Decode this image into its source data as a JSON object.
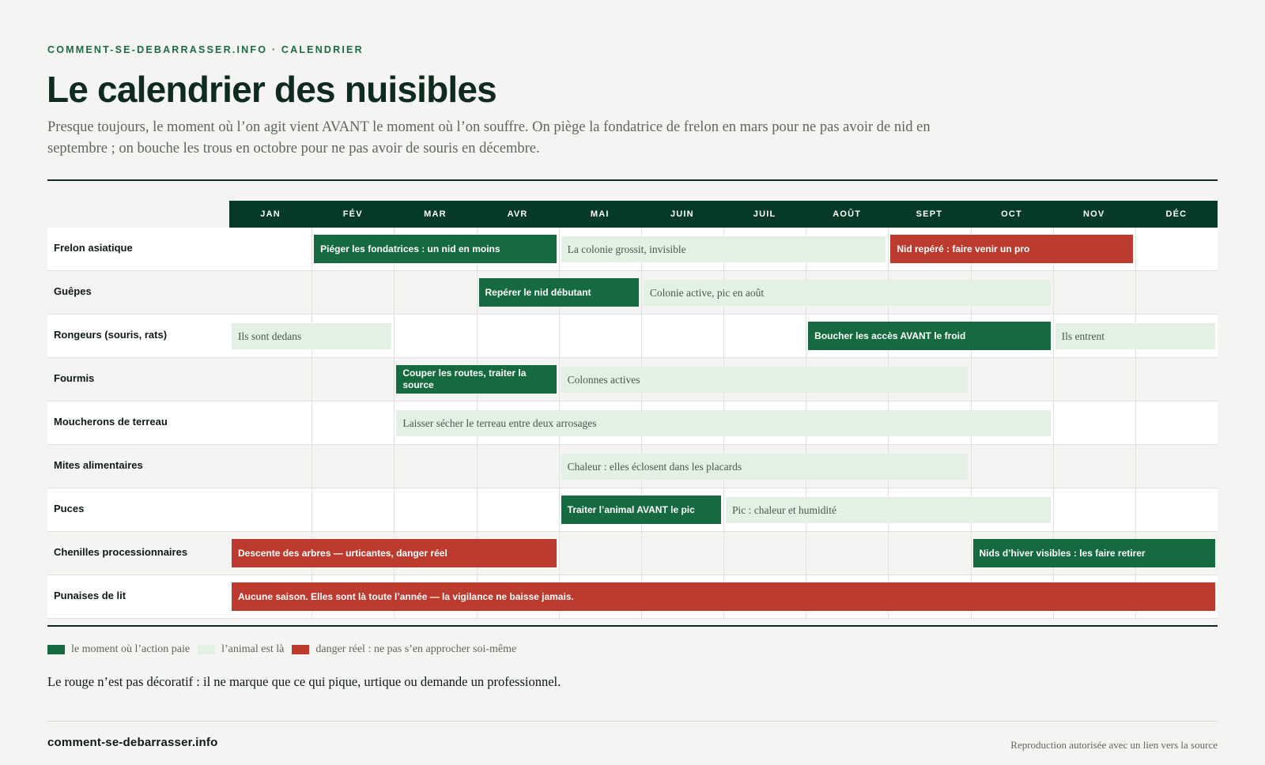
{
  "header": {
    "kicker": "COMMENT-SE-DEBARRASSER.INFO · CALENDRIER",
    "title": "Le calendrier des nuisibles",
    "lede": "Presque toujours, le moment où l’on agit vient AVANT le moment où l’on souffre. On piège la fondatrice de frelon en mars pour ne pas avoir de nid en septembre ; on bouche les trous en octobre pour ne pas avoir de souris en décembre."
  },
  "colors": {
    "action": "#166a40",
    "present": "#e3f0e4",
    "danger": "#bd3a2f",
    "header": "#063a28"
  },
  "months": [
    "JAN",
    "FÉV",
    "MAR",
    "AVR",
    "MAI",
    "JUIN",
    "JUIL",
    "AOÛT",
    "SEPT",
    "OCT",
    "NOV",
    "DÉC"
  ],
  "pests": [
    {
      "name": "Frelon asiatique",
      "bars": [
        {
          "start": 2,
          "end": 4,
          "kind": "action",
          "label": "Piéger les fondatrices : un nid en moins"
        },
        {
          "start": 5,
          "end": 8,
          "kind": "present",
          "label": "La colonie grossit, invisible"
        },
        {
          "start": 9,
          "end": 11,
          "kind": "danger",
          "label": "Nid repéré : faire venir un pro"
        }
      ]
    },
    {
      "name": "Guêpes",
      "bars": [
        {
          "start": 4,
          "end": 5,
          "kind": "action",
          "label": "Repérer le nid débutant"
        },
        {
          "start": 6,
          "end": 10,
          "kind": "present",
          "label": "Colonie active, pic en août"
        }
      ]
    },
    {
      "name": "Rongeurs (souris, rats)",
      "bars": [
        {
          "start": 1,
          "end": 2,
          "kind": "present",
          "label": "Ils sont dedans"
        },
        {
          "start": 8,
          "end": 10,
          "kind": "action",
          "label": "Boucher les accès AVANT le froid"
        },
        {
          "start": 11,
          "end": 12,
          "kind": "present",
          "label": "Ils entrent"
        }
      ]
    },
    {
      "name": "Fourmis",
      "bars": [
        {
          "start": 3,
          "end": 4,
          "kind": "action",
          "label": "Couper les routes, traiter la source"
        },
        {
          "start": 5,
          "end": 9,
          "kind": "present",
          "label": "Colonnes actives"
        }
      ]
    },
    {
      "name": "Moucherons de terreau",
      "bars": [
        {
          "start": 3,
          "end": 10,
          "kind": "present",
          "label": "Laisser sécher le terreau entre deux arrosages"
        }
      ]
    },
    {
      "name": "Mites alimentaires",
      "bars": [
        {
          "start": 5,
          "end": 9,
          "kind": "present",
          "label": "Chaleur : elles éclosent dans les placards"
        }
      ]
    },
    {
      "name": "Puces",
      "bars": [
        {
          "start": 5,
          "end": 6,
          "kind": "action",
          "label": "Traiter l’animal AVANT le pic"
        },
        {
          "start": 7,
          "end": 10,
          "kind": "present",
          "label": "Pic : chaleur et humidité"
        }
      ]
    },
    {
      "name": "Chenilles processionnaires",
      "bars": [
        {
          "start": 1,
          "end": 4,
          "kind": "danger",
          "label": "Descente des arbres — urticantes, danger réel"
        },
        {
          "start": 10,
          "end": 12,
          "kind": "action",
          "label": "Nids d’hiver visibles : les faire retirer"
        }
      ]
    },
    {
      "name": "Punaises de lit",
      "bars": [
        {
          "start": 1,
          "end": 12,
          "kind": "danger",
          "label": "Aucune saison. Elles sont là toute l’année — la vigilance ne baisse jamais."
        }
      ]
    }
  ],
  "legend": [
    {
      "kind": "action",
      "label": "le moment où l’action paie"
    },
    {
      "kind": "present",
      "label": "l’animal est là"
    },
    {
      "kind": "danger",
      "label": "danger réel : ne pas s’en approcher soi-même"
    }
  ],
  "note": "Le rouge n’est pas décoratif : il ne marque que ce qui pique, urtique ou demande un professionnel.",
  "footer": {
    "site": "comment-se-debarrasser.info",
    "rights": "Reproduction autorisée avec un lien vers la source"
  }
}
